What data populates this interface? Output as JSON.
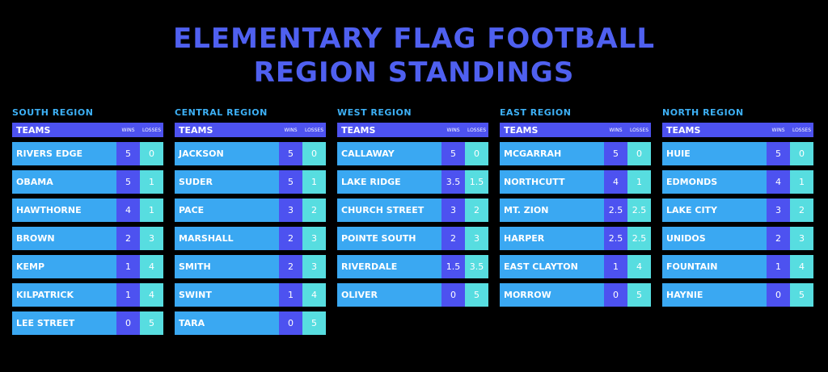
{
  "title": {
    "line1": "ELEMENTARY FLAG FOOTBALL",
    "line2": "REGION STANDINGS"
  },
  "columns": {
    "teams": "TEAMS",
    "wins": "WINS",
    "losses": "LOSSES"
  },
  "colors": {
    "title": "#4f60f0",
    "region_label": "#3db0f5",
    "header_bg": "#4d52f0",
    "team_bg": "#3aa8f2",
    "wins_bg": "#4d52f0",
    "losses_bg": "#57dde0"
  },
  "regions": [
    {
      "name": "SOUTH REGION",
      "teams": [
        {
          "name": "RIVERS EDGE",
          "wins": "5",
          "losses": "0"
        },
        {
          "name": "OBAMA",
          "wins": "5",
          "losses": "1"
        },
        {
          "name": "HAWTHORNE",
          "wins": "4",
          "losses": "1"
        },
        {
          "name": "BROWN",
          "wins": "2",
          "losses": "3"
        },
        {
          "name": "KEMP",
          "wins": "1",
          "losses": "4"
        },
        {
          "name": "KILPATRICK",
          "wins": "1",
          "losses": "4"
        },
        {
          "name": "LEE STREET",
          "wins": "0",
          "losses": "5"
        }
      ]
    },
    {
      "name": "CENTRAL REGION",
      "teams": [
        {
          "name": "JACKSON",
          "wins": "5",
          "losses": "0"
        },
        {
          "name": "SUDER",
          "wins": "5",
          "losses": "1"
        },
        {
          "name": "PACE",
          "wins": "3",
          "losses": "2"
        },
        {
          "name": "MARSHALL",
          "wins": "2",
          "losses": "3"
        },
        {
          "name": "SMITH",
          "wins": "2",
          "losses": "3"
        },
        {
          "name": "SWINT",
          "wins": "1",
          "losses": "4"
        },
        {
          "name": "TARA",
          "wins": "0",
          "losses": "5"
        }
      ]
    },
    {
      "name": "WEST REGION",
      "teams": [
        {
          "name": "CALLAWAY",
          "wins": "5",
          "losses": "0"
        },
        {
          "name": "LAKE RIDGE",
          "wins": "3.5",
          "losses": "1.5"
        },
        {
          "name": "CHURCH STREET",
          "wins": "3",
          "losses": "2"
        },
        {
          "name": "POINTE SOUTH",
          "wins": "2",
          "losses": "3"
        },
        {
          "name": "RIVERDALE",
          "wins": "1.5",
          "losses": "3.5"
        },
        {
          "name": "OLIVER",
          "wins": "0",
          "losses": "5"
        }
      ]
    },
    {
      "name": "EAST REGION",
      "teams": [
        {
          "name": "MCGARRAH",
          "wins": "5",
          "losses": "0"
        },
        {
          "name": "NORTHCUTT",
          "wins": "4",
          "losses": "1"
        },
        {
          "name": "MT. ZION",
          "wins": "2.5",
          "losses": "2.5"
        },
        {
          "name": "HARPER",
          "wins": "2.5",
          "losses": "2.5"
        },
        {
          "name": "EAST CLAYTON",
          "wins": "1",
          "losses": "4"
        },
        {
          "name": "MORROW",
          "wins": "0",
          "losses": "5"
        }
      ]
    },
    {
      "name": "NORTH REGION",
      "teams": [
        {
          "name": "HUIE",
          "wins": "5",
          "losses": "0"
        },
        {
          "name": "EDMONDS",
          "wins": "4",
          "losses": "1"
        },
        {
          "name": "LAKE CITY",
          "wins": "3",
          "losses": "2"
        },
        {
          "name": "UNIDOS",
          "wins": "2",
          "losses": "3"
        },
        {
          "name": "FOUNTAIN",
          "wins": "1",
          "losses": "4"
        },
        {
          "name": "HAYNIE",
          "wins": "0",
          "losses": "5"
        }
      ]
    }
  ]
}
